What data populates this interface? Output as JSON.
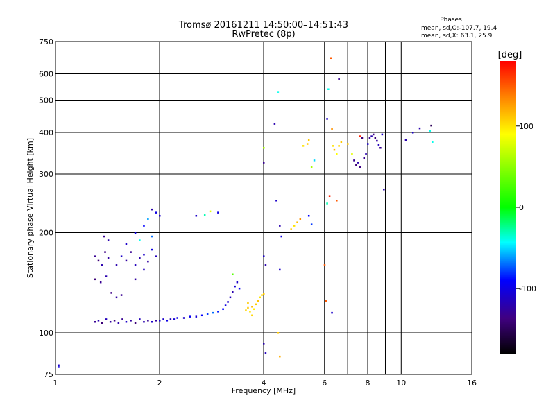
{
  "chart_data": {
    "type": "scatter",
    "title": "Tromsø 20161211 14:50:00–14:51:43",
    "subtitle": "RwPretec (8p)",
    "xlabel": "Frequency [MHz]",
    "ylabel": "Stationary phase Virtual Height [km]",
    "x_scale": "log",
    "y_scale": "log",
    "xlim": [
      1,
      16
    ],
    "ylim": [
      75,
      750
    ],
    "xticks": [
      1,
      2,
      4,
      6,
      8,
      10,
      16
    ],
    "xticks_minor": [
      7,
      9
    ],
    "yticks": [
      75,
      100,
      200,
      300,
      400,
      500,
      600,
      750
    ],
    "grid": true,
    "stats": {
      "heading": "Phases",
      "line_o": "mean, sd,O:-107.7, 19.4",
      "line_x": "mean, sd,X:  63.1, 25.9"
    },
    "colorbar": {
      "label": "[deg]",
      "min": -180,
      "max": 180,
      "ticks": [
        100,
        0,
        -100
      ]
    },
    "series": [
      {
        "points": [
          [
            1.02,
            80,
            -110
          ],
          [
            1.02,
            79,
            -100
          ],
          [
            1.3,
            108,
            -130
          ],
          [
            1.33,
            109,
            -120
          ],
          [
            1.36,
            107,
            -140
          ],
          [
            1.4,
            110,
            -115
          ],
          [
            1.44,
            108,
            -125
          ],
          [
            1.48,
            109,
            -135
          ],
          [
            1.52,
            107,
            -120
          ],
          [
            1.56,
            110,
            -130
          ],
          [
            1.6,
            108,
            -110
          ],
          [
            1.65,
            109,
            -125
          ],
          [
            1.7,
            107,
            -140
          ],
          [
            1.75,
            110,
            -115
          ],
          [
            1.8,
            108,
            -120
          ],
          [
            1.85,
            109,
            -130
          ],
          [
            1.9,
            108,
            -110
          ],
          [
            1.95,
            109,
            -125
          ],
          [
            2.0,
            109,
            -105
          ],
          [
            2.05,
            110,
            -110
          ],
          [
            2.1,
            109,
            -100
          ],
          [
            2.15,
            110,
            -115
          ],
          [
            2.2,
            110,
            -105
          ],
          [
            2.25,
            111,
            -100
          ],
          [
            2.35,
            111,
            -110
          ],
          [
            2.45,
            112,
            -95
          ],
          [
            2.55,
            112,
            -105
          ],
          [
            2.65,
            113,
            -90
          ],
          [
            2.75,
            114,
            -80
          ],
          [
            2.85,
            115,
            -70
          ],
          [
            2.95,
            116,
            -85
          ],
          [
            3.05,
            118,
            -90
          ],
          [
            3.1,
            121,
            -100
          ],
          [
            3.15,
            124,
            -110
          ],
          [
            3.2,
            128,
            -115
          ],
          [
            3.25,
            133,
            -120
          ],
          [
            3.3,
            138,
            -105
          ],
          [
            3.35,
            142,
            -110
          ],
          [
            3.25,
            150,
            30
          ],
          [
            3.4,
            136,
            -95
          ],
          [
            3.55,
            117,
            105
          ],
          [
            3.6,
            119,
            110
          ],
          [
            3.65,
            116,
            100
          ],
          [
            3.7,
            120,
            115
          ],
          [
            3.75,
            118,
            95
          ],
          [
            3.8,
            122,
            108
          ],
          [
            3.85,
            125,
            112
          ],
          [
            3.9,
            128,
            100
          ],
          [
            3.95,
            130,
            105
          ],
          [
            4.0,
            131,
            110
          ],
          [
            3.7,
            113,
            105
          ],
          [
            3.6,
            123,
            110
          ],
          [
            1.3,
            170,
            -130
          ],
          [
            1.33,
            165,
            -140
          ],
          [
            1.36,
            160,
            -120
          ],
          [
            1.39,
            175,
            -135
          ],
          [
            1.42,
            168,
            -125
          ],
          [
            1.3,
            145,
            -140
          ],
          [
            1.35,
            142,
            -130
          ],
          [
            1.4,
            148,
            -120
          ],
          [
            1.45,
            132,
            -135
          ],
          [
            1.5,
            128,
            -125
          ],
          [
            1.55,
            130,
            -130
          ],
          [
            1.5,
            160,
            -120
          ],
          [
            1.55,
            170,
            -110
          ],
          [
            1.6,
            165,
            -125
          ],
          [
            1.65,
            175,
            -130
          ],
          [
            1.7,
            160,
            -115
          ],
          [
            1.75,
            168,
            -120
          ],
          [
            1.8,
            172,
            -110
          ],
          [
            1.85,
            164,
            -125
          ],
          [
            1.9,
            178,
            -100
          ],
          [
            1.95,
            170,
            -115
          ],
          [
            1.38,
            195,
            -130
          ],
          [
            1.42,
            190,
            -120
          ],
          [
            1.6,
            185,
            -110
          ],
          [
            1.7,
            200,
            -100
          ],
          [
            1.8,
            210,
            -90
          ],
          [
            1.85,
            220,
            -60
          ],
          [
            1.9,
            235,
            -120
          ],
          [
            1.95,
            230,
            -100
          ],
          [
            2.0,
            225,
            -110
          ],
          [
            1.75,
            190,
            -40
          ],
          [
            1.9,
            195,
            -70
          ],
          [
            1.7,
            145,
            -125
          ],
          [
            1.8,
            155,
            -115
          ],
          [
            2.55,
            225,
            -110
          ],
          [
            2.8,
            232,
            80
          ],
          [
            2.95,
            230,
            -100
          ],
          [
            2.7,
            226,
            -30
          ],
          [
            4.0,
            170,
            -110
          ],
          [
            4.05,
            160,
            -120
          ],
          [
            4.0,
            93,
            -120
          ],
          [
            4.05,
            87,
            -115
          ],
          [
            4.0,
            325,
            -130
          ],
          [
            4.0,
            360,
            60
          ],
          [
            4.3,
            425,
            -120
          ],
          [
            4.4,
            530,
            -40
          ],
          [
            4.35,
            250,
            -110
          ],
          [
            4.45,
            210,
            -120
          ],
          [
            4.5,
            195,
            -100
          ],
          [
            4.45,
            155,
            -110
          ],
          [
            4.4,
            100,
            110
          ],
          [
            4.45,
            85,
            120
          ],
          [
            4.8,
            205,
            110
          ],
          [
            4.9,
            210,
            100
          ],
          [
            5.0,
            215,
            115
          ],
          [
            5.1,
            220,
            130
          ],
          [
            5.4,
            225,
            -90
          ],
          [
            5.5,
            212,
            -80
          ],
          [
            5.2,
            365,
            100
          ],
          [
            5.35,
            370,
            110
          ],
          [
            5.5,
            315,
            60
          ],
          [
            5.6,
            330,
            -50
          ],
          [
            5.4,
            380,
            110
          ],
          [
            6.0,
            160,
            150
          ],
          [
            6.05,
            125,
            150
          ],
          [
            6.1,
            245,
            -30
          ],
          [
            6.1,
            440,
            -110
          ],
          [
            6.15,
            540,
            -40
          ],
          [
            6.25,
            670,
            150
          ],
          [
            6.3,
            410,
            130
          ],
          [
            6.35,
            365,
            100
          ],
          [
            6.4,
            355,
            115
          ],
          [
            6.5,
            345,
            90
          ],
          [
            6.6,
            365,
            105
          ],
          [
            6.7,
            375,
            110
          ],
          [
            6.2,
            258,
            170
          ],
          [
            6.3,
            115,
            -110
          ],
          [
            6.5,
            250,
            150
          ],
          [
            6.6,
            580,
            -130
          ],
          [
            7.3,
            330,
            -130
          ],
          [
            7.4,
            320,
            -140
          ],
          [
            7.5,
            325,
            -120
          ],
          [
            7.6,
            315,
            -135
          ],
          [
            7.8,
            335,
            -130
          ],
          [
            7.9,
            345,
            -120
          ],
          [
            8.0,
            370,
            -110
          ],
          [
            8.1,
            385,
            -130
          ],
          [
            8.2,
            390,
            -120
          ],
          [
            8.3,
            395,
            -135
          ],
          [
            8.4,
            385,
            -140
          ],
          [
            8.5,
            378,
            -125
          ],
          [
            8.6,
            368,
            -115
          ],
          [
            8.7,
            360,
            -130
          ],
          [
            8.8,
            395,
            -110
          ],
          [
            8.9,
            270,
            -120
          ],
          [
            7.6,
            390,
            170
          ],
          [
            7.7,
            385,
            -140
          ],
          [
            7.0,
            370,
            110
          ],
          [
            7.2,
            345,
            80
          ],
          [
            10.3,
            380,
            -120
          ],
          [
            10.8,
            400,
            -110
          ],
          [
            11.3,
            412,
            -120
          ],
          [
            12.2,
            420,
            -150
          ],
          [
            12.1,
            405,
            -40
          ],
          [
            12.3,
            375,
            -40
          ]
        ]
      }
    ]
  }
}
